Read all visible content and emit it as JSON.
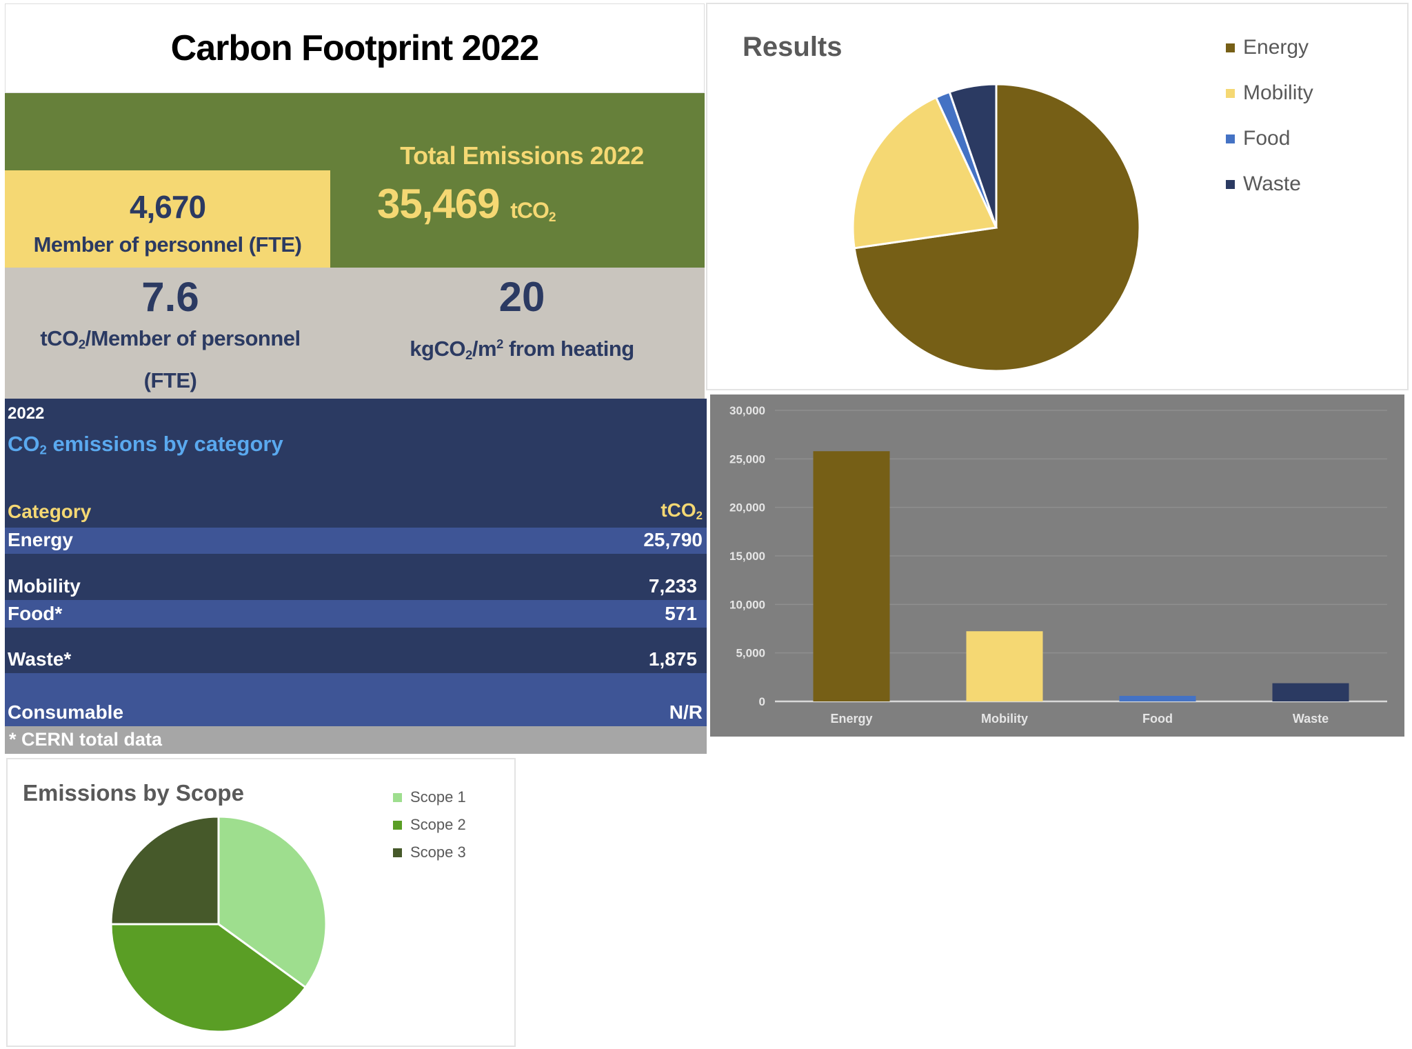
{
  "header": {
    "title": "Carbon Footprint 2022"
  },
  "personnel": {
    "value": "4,670",
    "label": "Member of personnel (FTE)"
  },
  "total": {
    "label": "Total Emissions 2022",
    "value": "35,469",
    "unit": "tCO",
    "unit_sub": "2"
  },
  "per_person": {
    "value": "7.6",
    "label_pre": "tCO",
    "label_sub": "2",
    "label_post": "/Member of personnel (FTE)"
  },
  "heating": {
    "value": "20",
    "label_pre": "kgCO",
    "label_sub": "2",
    "label_mid": "/m",
    "label_sup": "2",
    "label_post": " from heating"
  },
  "table": {
    "year": "2022",
    "title_pre": "CO",
    "title_sub": "2",
    "title_post": " emissions by category",
    "col_category": "Category",
    "col_unit": "tCO",
    "col_unit_sub": "2",
    "rows": [
      {
        "category": "Energy",
        "value": "25,790"
      },
      {
        "category": "Mobility",
        "value": "7,233"
      },
      {
        "category": "Food*",
        "value": "571"
      },
      {
        "category": "Waste*",
        "value": "1,875"
      },
      {
        "category": "Consumable",
        "value": "N/R"
      }
    ],
    "footnote": "* CERN total data"
  },
  "colors": {
    "energy": "#765f16",
    "mobility": "#f5d873",
    "food": "#4472c4",
    "waste": "#2b3a62",
    "scope1": "#9ede8e",
    "scope2": "#5a9e25",
    "scope3": "#46592a"
  },
  "chart_data": [
    {
      "type": "pie",
      "title": "Results",
      "categories": [
        "Energy",
        "Mobility",
        "Food",
        "Waste"
      ],
      "values": [
        25790,
        7233,
        571,
        1875
      ],
      "legend": "right"
    },
    {
      "type": "bar",
      "title": "",
      "categories": [
        "Energy",
        "Mobility",
        "Food",
        "Waste"
      ],
      "values": [
        25790,
        7233,
        571,
        1875
      ],
      "ylim": [
        0,
        30000
      ],
      "yticks": [
        "0",
        "5,000",
        "10,000",
        "15,000",
        "20,000",
        "25,000",
        "30,000"
      ],
      "grid": true
    },
    {
      "type": "pie",
      "title": "Emissions by Scope",
      "categories": [
        "Scope 1",
        "Scope 2",
        "Scope 3"
      ],
      "values": [
        35,
        40,
        25
      ],
      "legend": "right"
    }
  ]
}
